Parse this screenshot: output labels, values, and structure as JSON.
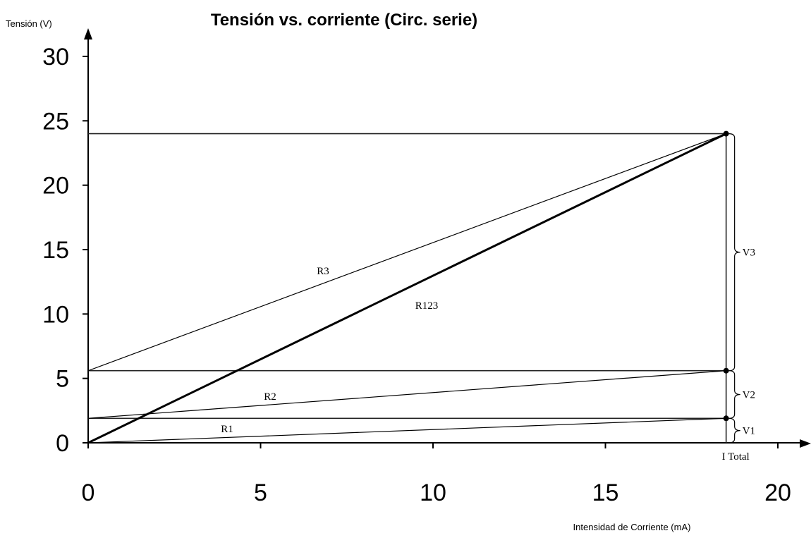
{
  "chart_data": {
    "type": "line",
    "title": "Tensión vs. corriente (Circ. serie)",
    "xlabel": "Intensidad de Corriente (mA)",
    "ylabel": "Tensión (V)",
    "xlim": [
      0,
      20
    ],
    "ylim": [
      0,
      30
    ],
    "x_ticks": [
      0,
      5,
      10,
      15,
      20
    ],
    "y_ticks": [
      0,
      5,
      10,
      15,
      20,
      25,
      30
    ],
    "grid": false,
    "i_total": 18.5,
    "series": [
      {
        "name": "R1",
        "points": [
          [
            0,
            0
          ],
          [
            18.5,
            1.9
          ]
        ],
        "bold": false
      },
      {
        "name": "R2",
        "points": [
          [
            0,
            1.9
          ],
          [
            18.5,
            5.6
          ]
        ],
        "bold": false
      },
      {
        "name": "R3",
        "points": [
          [
            0,
            5.6
          ],
          [
            18.5,
            24
          ]
        ],
        "bold": false
      },
      {
        "name": "R123",
        "points": [
          [
            0,
            0
          ],
          [
            18.5,
            24
          ]
        ],
        "bold": true
      }
    ],
    "reference_levels": [
      1.9,
      5.6,
      24
    ],
    "annotations": [
      {
        "label": "V1",
        "from": 0,
        "to": 1.9
      },
      {
        "label": "V2",
        "from": 1.9,
        "to": 5.6
      },
      {
        "label": "V3",
        "from": 5.6,
        "to": 24
      }
    ],
    "i_total_label": "I Total"
  }
}
